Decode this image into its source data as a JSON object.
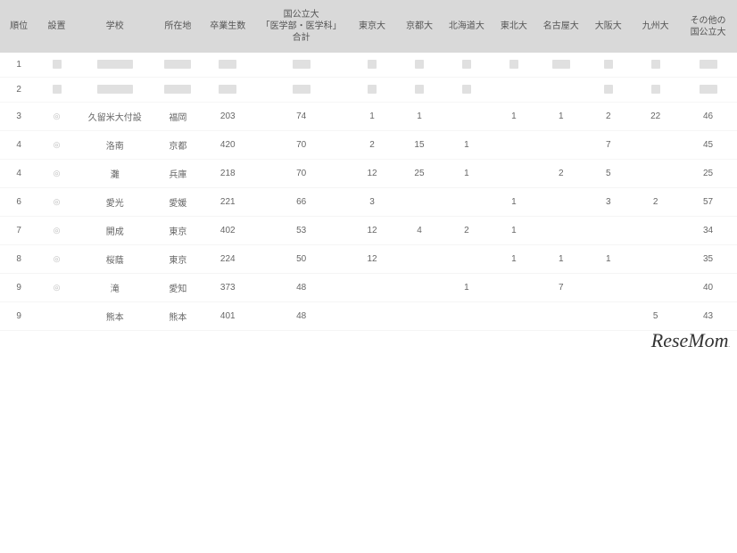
{
  "headers": {
    "rank": "順位",
    "setup": "設置",
    "school": "学校",
    "location": "所在地",
    "graduates": "卒業生数",
    "medical": "国公立大\n「医学部・医学科」合計",
    "tokyo": "東京大",
    "kyoto": "京都大",
    "hokkaido": "北海道大",
    "tohoku": "東北大",
    "nagoya": "名古屋大",
    "osaka": "大阪大",
    "kyushu": "九州大",
    "other": "その他の\n国公立大"
  },
  "marker_symbol": "◎",
  "rows": [
    {
      "rank": "1",
      "setup_blur": true,
      "school_blur": true,
      "location_blur": true,
      "graduates_blur": true,
      "medical_blur": true,
      "tokyo_blur": true,
      "kyoto_blur": true,
      "hokkaido_blur": true,
      "tohoku_blur": true,
      "nagoya_blur": true,
      "osaka_blur": true,
      "kyushu_blur": true,
      "other_blur": true
    },
    {
      "rank": "2",
      "setup_blur": true,
      "school_blur": true,
      "location_blur": true,
      "graduates_blur": true,
      "medical_blur": true,
      "tokyo_blur": true,
      "kyoto_blur": true,
      "hokkaido_blur": true,
      "tohoku": "",
      "nagoya": "",
      "osaka_blur": true,
      "kyushu_blur": true,
      "other_blur": true
    },
    {
      "rank": "3",
      "setup": "◎",
      "school": "久留米大付設",
      "location": "福岡",
      "graduates": "203",
      "medical": "74",
      "tokyo": "1",
      "kyoto": "1",
      "hokkaido": "",
      "tohoku": "1",
      "nagoya": "1",
      "osaka": "2",
      "kyushu": "22",
      "other": "46"
    },
    {
      "rank": "4",
      "setup": "◎",
      "school": "洛南",
      "location": "京都",
      "graduates": "420",
      "medical": "70",
      "tokyo": "2",
      "kyoto": "15",
      "hokkaido": "1",
      "tohoku": "",
      "nagoya": "",
      "osaka": "7",
      "kyushu": "",
      "other": "45"
    },
    {
      "rank": "4",
      "setup": "◎",
      "school": "灘",
      "location": "兵庫",
      "graduates": "218",
      "medical": "70",
      "tokyo": "12",
      "kyoto": "25",
      "hokkaido": "1",
      "tohoku": "",
      "nagoya": "2",
      "osaka": "5",
      "kyushu": "",
      "other": "25"
    },
    {
      "rank": "6",
      "setup": "◎",
      "school": "愛光",
      "location": "愛媛",
      "graduates": "221",
      "medical": "66",
      "tokyo": "3",
      "kyoto": "",
      "hokkaido": "",
      "tohoku": "1",
      "nagoya": "",
      "osaka": "3",
      "kyushu": "2",
      "other": "57"
    },
    {
      "rank": "7",
      "setup": "◎",
      "school": "開成",
      "location": "東京",
      "graduates": "402",
      "medical": "53",
      "tokyo": "12",
      "kyoto": "4",
      "hokkaido": "2",
      "tohoku": "1",
      "nagoya": "",
      "osaka": "",
      "kyushu": "",
      "other": "34"
    },
    {
      "rank": "8",
      "setup": "◎",
      "school": "桜蔭",
      "location": "東京",
      "graduates": "224",
      "medical": "50",
      "tokyo": "12",
      "kyoto": "",
      "hokkaido": "",
      "tohoku": "1",
      "nagoya": "1",
      "osaka": "1",
      "kyushu": "",
      "other": "35"
    },
    {
      "rank": "9",
      "setup": "◎",
      "school": "滝",
      "location": "愛知",
      "graduates": "373",
      "medical": "48",
      "tokyo": "",
      "kyoto": "",
      "hokkaido": "1",
      "tohoku": "",
      "nagoya": "7",
      "osaka": "",
      "kyushu": "",
      "other": "40"
    },
    {
      "rank": "9",
      "setup": "",
      "school": "熊本",
      "location": "熊本",
      "graduates": "401",
      "medical": "48",
      "tokyo": "",
      "kyoto": "",
      "hokkaido": "",
      "tohoku": "",
      "nagoya": "",
      "osaka": "",
      "kyushu": "5",
      "other": "43"
    }
  ],
  "watermark": "ReseMom."
}
